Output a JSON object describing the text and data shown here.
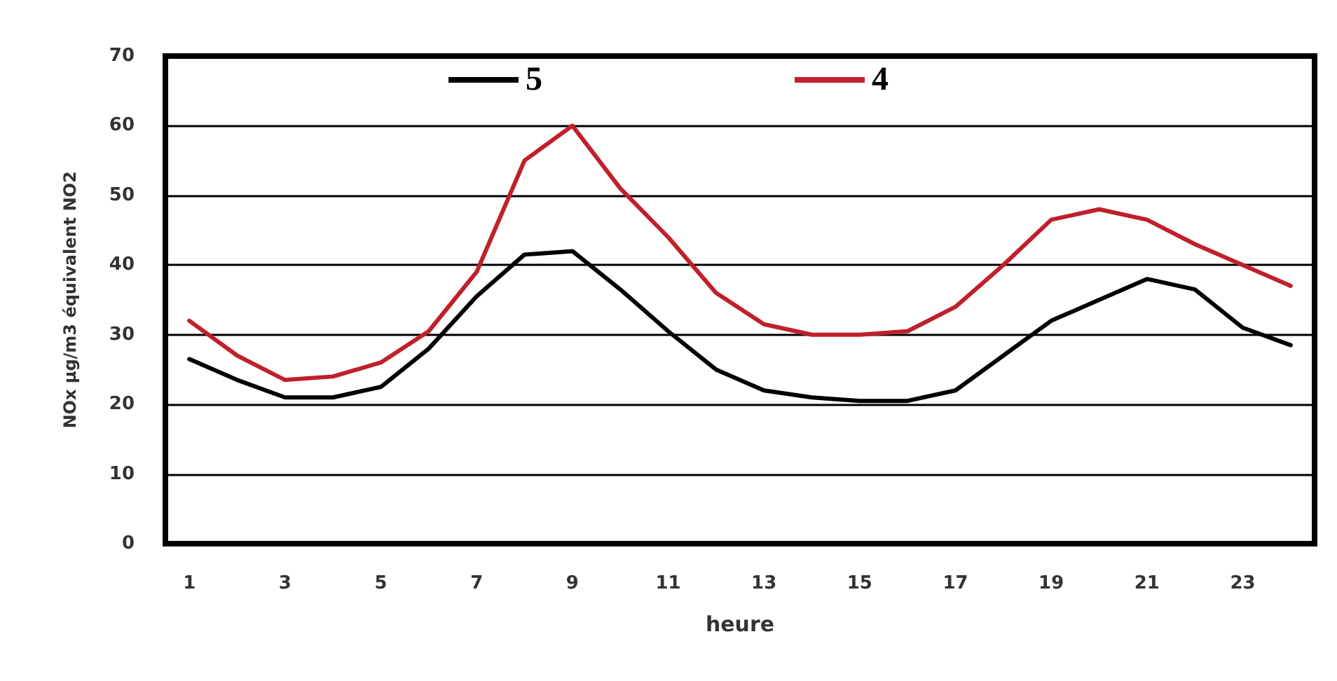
{
  "chart_data": {
    "type": "line",
    "xlabel": "heure",
    "ylabel": "NOx µg/m3 équivalent NO2",
    "x": [
      1,
      2,
      3,
      4,
      5,
      6,
      7,
      8,
      9,
      10,
      11,
      12,
      13,
      14,
      15,
      16,
      17,
      18,
      19,
      20,
      21,
      22,
      23,
      24
    ],
    "xlim": [
      0.5,
      24.5
    ],
    "xticks": [
      1,
      3,
      5,
      7,
      9,
      11,
      13,
      15,
      17,
      19,
      21,
      23
    ],
    "series": [
      {
        "name": "5",
        "color": "#000000",
        "values": [
          26.5,
          23.5,
          21,
          21,
          22.5,
          28,
          35.5,
          41.5,
          42,
          36.5,
          30.5,
          25,
          22,
          21,
          20.5,
          20.5,
          22,
          27,
          32,
          35,
          38,
          36.5,
          31,
          28.5
        ]
      },
      {
        "name": "4",
        "color": "#c0202a",
        "values": [
          32,
          27,
          23.5,
          24,
          26,
          30.5,
          39,
          55,
          60,
          51,
          44,
          36,
          31.5,
          30,
          30,
          30.5,
          34,
          40,
          46.5,
          48,
          46.5,
          43,
          40,
          37
        ]
      }
    ],
    "ylim": [
      0,
      70
    ],
    "yticks": [
      0,
      10,
      20,
      30,
      40,
      50,
      60,
      70
    ],
    "grid": "y",
    "legend": "top",
    "marker": "none",
    "line_style": "solid"
  }
}
